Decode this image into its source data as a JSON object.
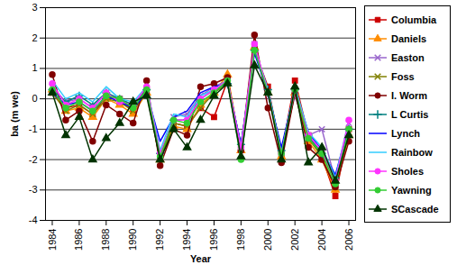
{
  "chart_data": {
    "type": "line",
    "x_label": "Year",
    "y_label": "ba (m we)",
    "x": [
      1984,
      1985,
      1986,
      1987,
      1988,
      1989,
      1990,
      1991,
      1992,
      1993,
      1994,
      1995,
      1996,
      1997,
      1998,
      1999,
      2000,
      2001,
      2002,
      2003,
      2004,
      2005,
      2006
    ],
    "xlim": [
      1983.5,
      2006.5
    ],
    "xticks": [
      1984,
      1986,
      1988,
      1990,
      1992,
      1994,
      1996,
      1998,
      2000,
      2002,
      2004,
      2006
    ],
    "ylim": [
      -4,
      3
    ],
    "yticks": [
      -4,
      -3,
      -2,
      -1,
      0,
      1,
      2,
      3
    ],
    "grid": true,
    "legend": "right",
    "series": [
      {
        "name": "Columbia",
        "color": "#cc0000",
        "marker": "square",
        "values": [
          0.2,
          -0.3,
          -0.2,
          -0.5,
          0.1,
          0.0,
          -0.4,
          0.3,
          -1.9,
          -0.8,
          -0.9,
          -0.3,
          -0.6,
          0.6,
          -1.6,
          1.6,
          0.4,
          -1.8,
          0.6,
          -1.2,
          -1.9,
          -3.2,
          -1.0
        ]
      },
      {
        "name": "Daniels",
        "color": "#ff8c00",
        "marker": "triangle",
        "values": [
          0.3,
          -0.4,
          -0.3,
          -0.6,
          0.0,
          -0.2,
          -0.5,
          0.2,
          -2.0,
          -0.9,
          -1.0,
          -0.2,
          0.2,
          0.8,
          -1.7,
          1.7,
          0.2,
          -1.9,
          0.2,
          -1.4,
          -2.0,
          -3.0,
          -1.2
        ]
      },
      {
        "name": "Easton",
        "color": "#9966cc",
        "marker": "x",
        "values": [
          0.4,
          -0.1,
          0.0,
          -0.3,
          0.2,
          0.0,
          -0.2,
          0.3,
          -1.9,
          -0.6,
          -0.5,
          0.1,
          0.4,
          0.6,
          -1.6,
          1.8,
          0.1,
          -1.7,
          0.1,
          -1.2,
          -1.0,
          -2.7,
          -0.8
        ]
      },
      {
        "name": "Foss",
        "color": "#808000",
        "marker": "x",
        "values": [
          0.2,
          -0.4,
          -0.2,
          -0.5,
          0.0,
          -0.1,
          -0.4,
          0.2,
          -2.0,
          -0.8,
          -0.9,
          -0.3,
          0.2,
          0.5,
          -1.6,
          1.6,
          0.2,
          -1.8,
          0.2,
          -1.3,
          -1.9,
          -2.9,
          -1.1
        ]
      },
      {
        "name": "I. Worm",
        "color": "#800000",
        "marker": "circle",
        "values": [
          0.8,
          -0.7,
          -0.4,
          -1.4,
          -0.2,
          -0.5,
          -0.8,
          0.6,
          -2.2,
          -1.0,
          -1.2,
          0.4,
          0.5,
          0.7,
          -1.7,
          2.1,
          -0.3,
          -2.1,
          0.2,
          -1.6,
          -2.0,
          -2.9,
          -1.4
        ]
      },
      {
        "name": "L Curtis",
        "color": "#008080",
        "marker": "plus",
        "values": [
          0.3,
          -0.1,
          0.1,
          -0.2,
          0.2,
          0.0,
          -0.2,
          0.3,
          -1.8,
          -0.7,
          -0.7,
          0.0,
          0.3,
          0.5,
          -1.5,
          1.6,
          0.3,
          -1.7,
          0.3,
          -1.2,
          -1.8,
          -2.6,
          -1.0
        ]
      },
      {
        "name": "Lynch",
        "color": "#0000ff",
        "marker": "none",
        "values": [
          0.2,
          -0.2,
          -0.1,
          -0.4,
          0.1,
          -0.1,
          -0.3,
          0.2,
          -1.4,
          -0.6,
          -0.4,
          0.2,
          0.4,
          0.5,
          -1.5,
          1.5,
          0.2,
          -1.6,
          0.3,
          -1.1,
          -1.7,
          -2.5,
          -0.9
        ]
      },
      {
        "name": "Rainbow",
        "color": "#33ccff",
        "marker": "none",
        "values": [
          0.6,
          0.0,
          0.2,
          -0.1,
          0.4,
          0.0,
          -0.1,
          0.4,
          -1.7,
          -0.5,
          -0.6,
          0.1,
          0.3,
          0.6,
          -1.6,
          1.7,
          0.3,
          -1.8,
          0.4,
          -1.1,
          -1.6,
          -2.6,
          -0.7
        ]
      },
      {
        "name": "Sholes",
        "color": "#ff33ff",
        "marker": "circle",
        "values": [
          0.5,
          -0.2,
          0.0,
          -0.3,
          0.2,
          -0.1,
          -0.2,
          0.4,
          -1.8,
          -0.7,
          -0.7,
          0.0,
          0.3,
          0.6,
          -1.6,
          1.8,
          0.2,
          -1.8,
          0.3,
          -1.2,
          -1.7,
          -2.7,
          -0.7
        ]
      },
      {
        "name": "Yawning",
        "color": "#33cc33",
        "marker": "circle",
        "values": [
          0.3,
          -0.3,
          -0.1,
          -0.4,
          0.1,
          0.0,
          -0.3,
          0.3,
          -1.9,
          -0.7,
          -0.8,
          -0.1,
          0.2,
          0.6,
          -2.0,
          1.6,
          0.2,
          -1.8,
          0.3,
          -1.3,
          -1.8,
          -2.8,
          -1.0
        ]
      },
      {
        "name": "SCascade",
        "color": "#003300",
        "marker": "triangle",
        "values": [
          0.2,
          -1.2,
          -0.6,
          -2.0,
          -1.3,
          -0.8,
          -0.1,
          0.1,
          -2.0,
          -1.0,
          -1.6,
          -0.7,
          0.1,
          0.5,
          -1.9,
          1.1,
          0.2,
          -2.0,
          0.4,
          -2.1,
          -1.6,
          -2.7,
          -1.2
        ]
      }
    ]
  }
}
